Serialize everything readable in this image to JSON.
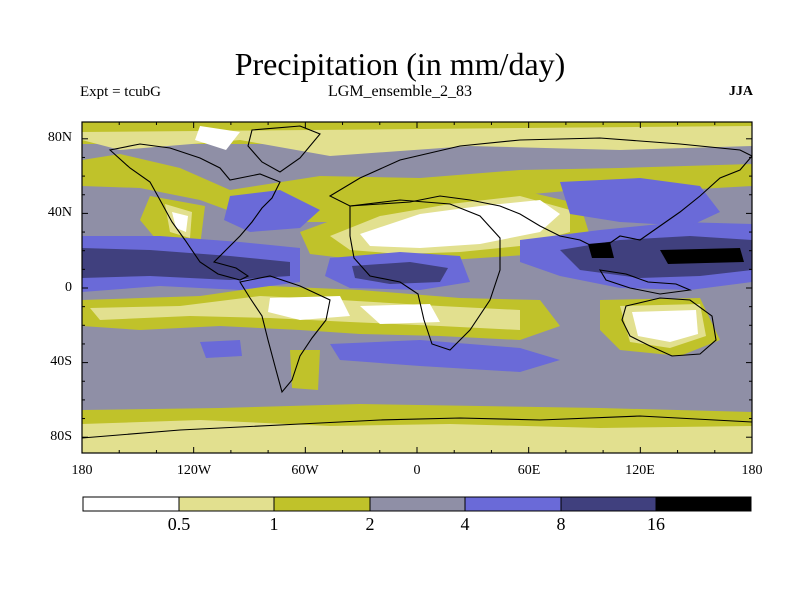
{
  "title": "Precipitation (in mm/day)",
  "experiment": "Expt = tcubG",
  "run_name": "LGM_ensemble_2_83",
  "season": "JJA",
  "map_axes": {
    "lat_labels": [
      "80N",
      "40N",
      "0",
      "40S",
      "80S"
    ],
    "lon_labels": [
      "180",
      "120W",
      "60W",
      "0",
      "60E",
      "120E",
      "180"
    ]
  },
  "colorbar": {
    "thresholds": [
      "0.5",
      "1",
      "2",
      "4",
      "8",
      "16"
    ],
    "colors": [
      "#ffffff",
      "#e2e08f",
      "#c0c22a",
      "#8f8fa6",
      "#6a6ad8",
      "#40407e",
      "#000000"
    ]
  },
  "palette": {
    "land_outline": "#000000",
    "frame": "#000000"
  }
}
